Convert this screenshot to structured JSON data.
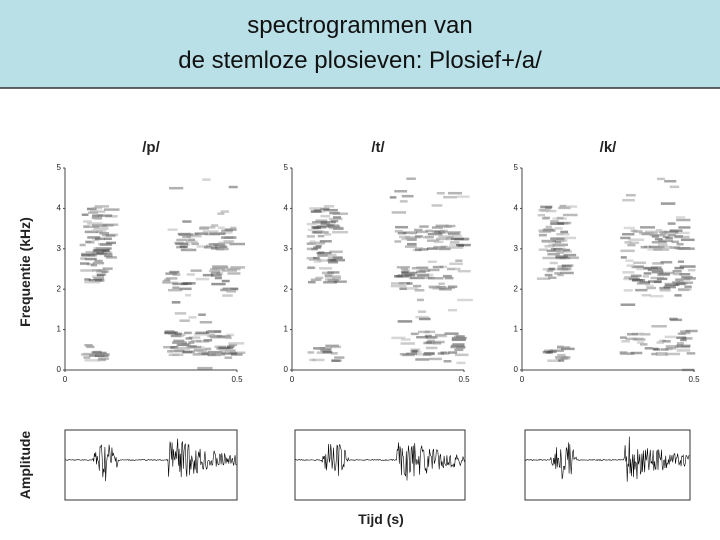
{
  "header": {
    "title_lines": [
      "spectrogrammen van",
      "de stemloze plosieven: Plosief+/a/"
    ]
  },
  "y_axis_label": "Frequentie (kHz)",
  "amplitude_label": "Amplitude",
  "x_axis_label": "Tijd (s)",
  "panels": [
    {
      "title": "/p/",
      "yticks": [
        0,
        1,
        2,
        3,
        4,
        5
      ],
      "xticks": [
        0,
        0.5
      ]
    },
    {
      "title": "/t/",
      "yticks": [
        0,
        1,
        2,
        3,
        4,
        5
      ],
      "xticks": [
        0,
        0.5
      ]
    },
    {
      "title": "/k/",
      "yticks": [
        0,
        1,
        2,
        3,
        4,
        5
      ],
      "xticks": [
        0,
        0.5
      ]
    }
  ]
}
